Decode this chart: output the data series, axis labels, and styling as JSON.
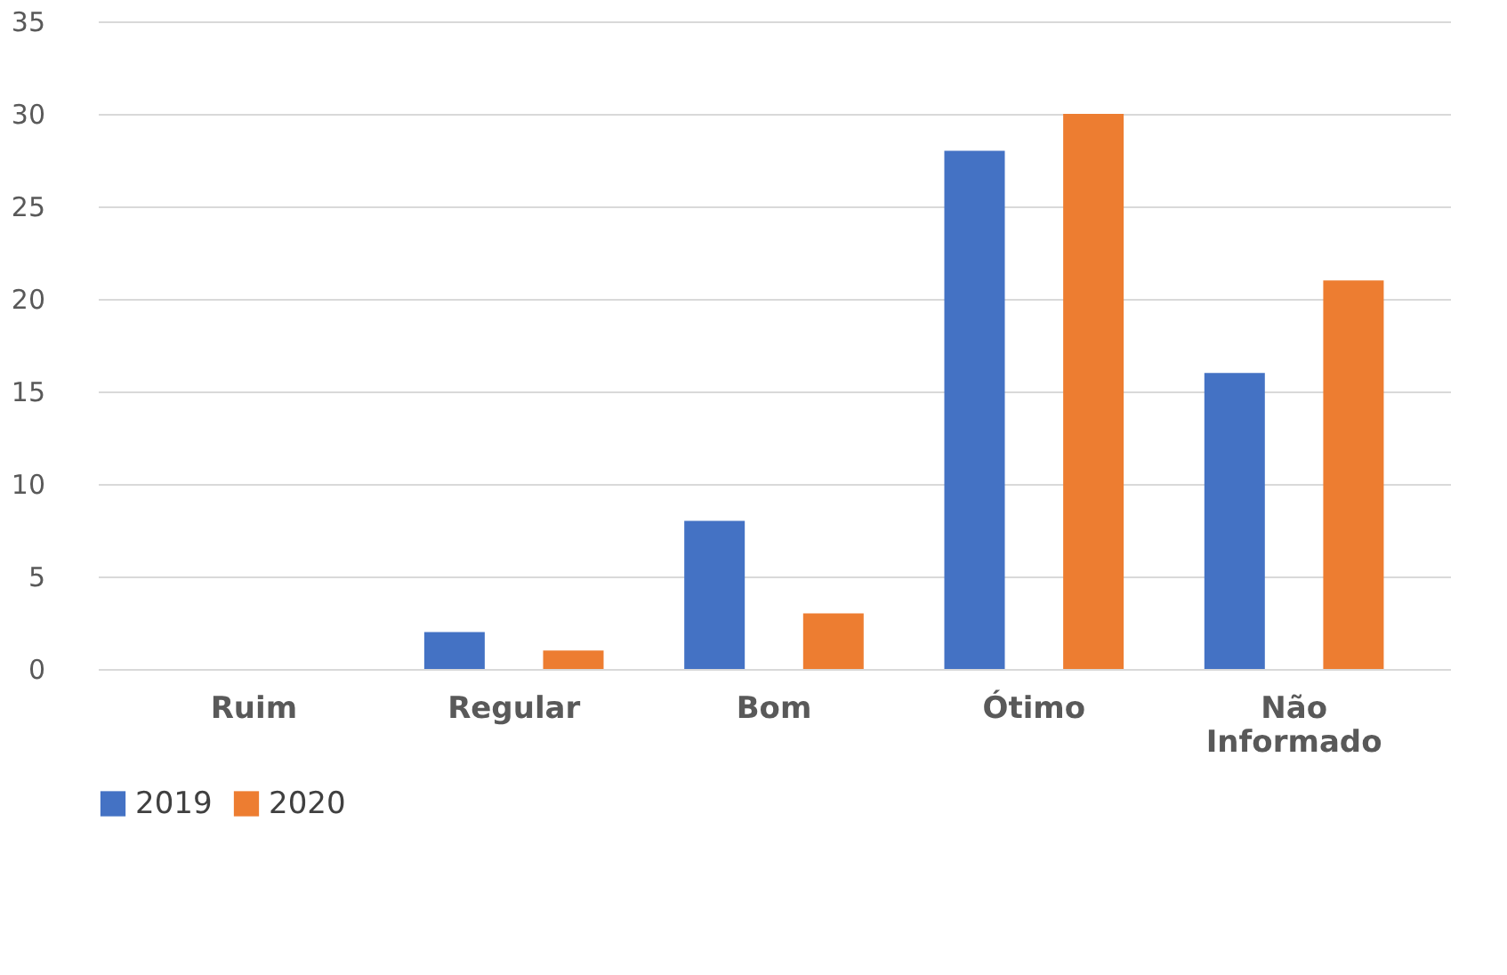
{
  "chart_data": {
    "type": "bar",
    "categories": [
      "Ruim",
      "Regular",
      "Bom",
      "Ótimo",
      "Não Informado"
    ],
    "series": [
      {
        "name": "2019",
        "color": "#4472c4",
        "values": [
          0,
          2,
          8,
          28,
          16
        ]
      },
      {
        "name": "2020",
        "color": "#ed7d31",
        "values": [
          0,
          1,
          3,
          30,
          21
        ]
      }
    ],
    "ylim": [
      0,
      35
    ],
    "yticks": [
      0,
      5,
      10,
      15,
      20,
      25,
      30,
      35
    ],
    "grid": "y",
    "legend": "bottom"
  }
}
